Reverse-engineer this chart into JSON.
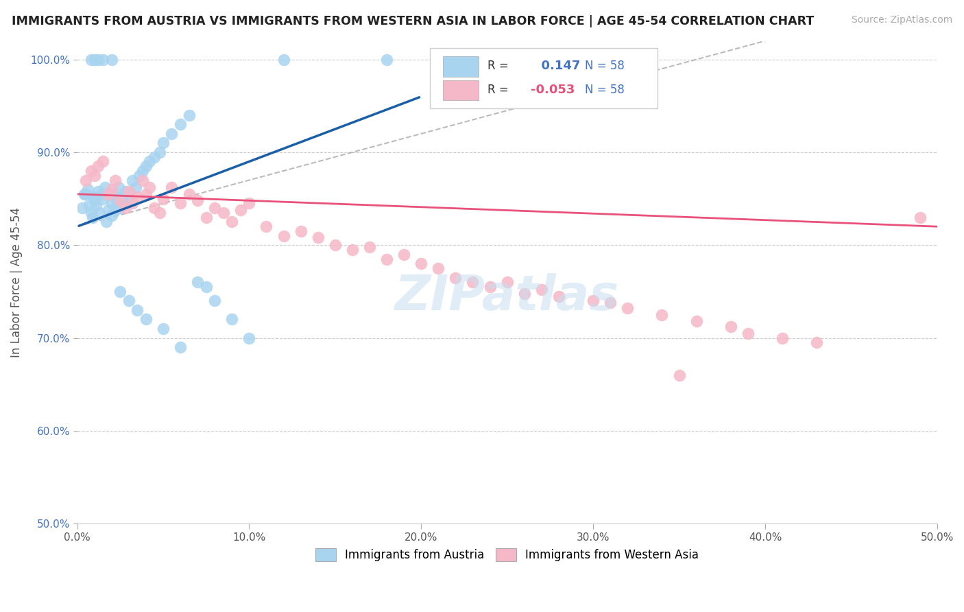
{
  "title": "IMMIGRANTS FROM AUSTRIA VS IMMIGRANTS FROM WESTERN ASIA IN LABOR FORCE | AGE 45-54 CORRELATION CHART",
  "source": "Source: ZipAtlas.com",
  "ylabel": "In Labor Force | Age 45-54",
  "r_austria": 0.147,
  "n_austria": 58,
  "r_western_asia": -0.053,
  "n_western_asia": 58,
  "xlim": [
    0.0,
    0.5
  ],
  "ylim": [
    0.5,
    1.02
  ],
  "yticks": [
    0.5,
    0.6,
    0.7,
    0.8,
    0.9,
    1.0
  ],
  "ytick_labels": [
    "50.0%",
    "60.0%",
    "70.0%",
    "80.0%",
    "90.0%",
    "100.0%"
  ],
  "xticks": [
    0.0,
    0.1,
    0.2,
    0.3,
    0.4,
    0.5
  ],
  "xtick_labels": [
    "0.0%",
    "10.0%",
    "20.0%",
    "30.0%",
    "40.0%",
    "50.0%"
  ],
  "color_austria": "#a8d4f0",
  "color_western_asia": "#f5b8c8",
  "line_color_austria": "#1a5fa8",
  "line_color_western_asia": "#e8517a",
  "legend_items": [
    "Immigrants from Austria",
    "Immigrants from Western Asia"
  ],
  "austria_x": [
    0.003,
    0.004,
    0.005,
    0.006,
    0.007,
    0.008,
    0.009,
    0.01,
    0.01,
    0.011,
    0.012,
    0.013,
    0.014,
    0.015,
    0.016,
    0.017,
    0.018,
    0.019,
    0.02,
    0.02,
    0.021,
    0.022,
    0.023,
    0.024,
    0.025,
    0.026,
    0.028,
    0.03,
    0.032,
    0.034,
    0.036,
    0.038,
    0.04,
    0.042,
    0.045,
    0.048,
    0.05,
    0.055,
    0.06,
    0.065,
    0.07,
    0.075,
    0.08,
    0.09,
    0.1,
    0.008,
    0.01,
    0.012,
    0.015,
    0.02,
    0.025,
    0.03,
    0.035,
    0.04,
    0.05,
    0.06,
    0.12,
    0.18
  ],
  "austria_y": [
    0.84,
    0.855,
    0.855,
    0.86,
    0.843,
    0.835,
    0.83,
    0.848,
    0.852,
    0.843,
    0.858,
    0.835,
    0.855,
    0.85,
    0.862,
    0.825,
    0.838,
    0.855,
    0.832,
    0.845,
    0.855,
    0.838,
    0.848,
    0.862,
    0.84,
    0.852,
    0.858,
    0.848,
    0.87,
    0.862,
    0.875,
    0.88,
    0.885,
    0.89,
    0.895,
    0.9,
    0.91,
    0.92,
    0.93,
    0.94,
    0.76,
    0.755,
    0.74,
    0.72,
    0.7,
    1.0,
    1.0,
    1.0,
    1.0,
    1.0,
    0.75,
    0.74,
    0.73,
    0.72,
    0.71,
    0.69,
    1.0,
    1.0
  ],
  "western_asia_x": [
    0.005,
    0.008,
    0.01,
    0.012,
    0.015,
    0.018,
    0.02,
    0.022,
    0.025,
    0.028,
    0.03,
    0.032,
    0.035,
    0.038,
    0.04,
    0.042,
    0.045,
    0.048,
    0.05,
    0.055,
    0.06,
    0.065,
    0.07,
    0.075,
    0.08,
    0.085,
    0.09,
    0.095,
    0.1,
    0.11,
    0.12,
    0.13,
    0.14,
    0.15,
    0.16,
    0.17,
    0.18,
    0.19,
    0.2,
    0.21,
    0.22,
    0.23,
    0.24,
    0.25,
    0.26,
    0.27,
    0.28,
    0.3,
    0.31,
    0.32,
    0.34,
    0.36,
    0.38,
    0.39,
    0.41,
    0.43,
    0.49,
    0.35
  ],
  "western_asia_y": [
    0.87,
    0.88,
    0.875,
    0.885,
    0.89,
    0.855,
    0.86,
    0.87,
    0.848,
    0.84,
    0.858,
    0.845,
    0.852,
    0.87,
    0.855,
    0.862,
    0.84,
    0.835,
    0.85,
    0.862,
    0.845,
    0.855,
    0.848,
    0.83,
    0.84,
    0.835,
    0.825,
    0.838,
    0.845,
    0.82,
    0.81,
    0.815,
    0.808,
    0.8,
    0.795,
    0.798,
    0.785,
    0.79,
    0.78,
    0.775,
    0.765,
    0.76,
    0.755,
    0.76,
    0.748,
    0.752,
    0.745,
    0.74,
    0.738,
    0.732,
    0.725,
    0.718,
    0.712,
    0.705,
    0.7,
    0.695,
    0.83,
    0.66
  ],
  "austria_line_x0": 0.0,
  "austria_line_y0": 0.82,
  "austria_line_x1": 0.2,
  "austria_line_y1": 0.96,
  "western_line_x0": 0.0,
  "western_line_y0": 0.855,
  "western_line_x1": 0.5,
  "western_line_y1": 0.82,
  "dash_line_x0": 0.0,
  "dash_line_y0": 0.82,
  "dash_line_x1": 0.4,
  "dash_line_y1": 1.02
}
